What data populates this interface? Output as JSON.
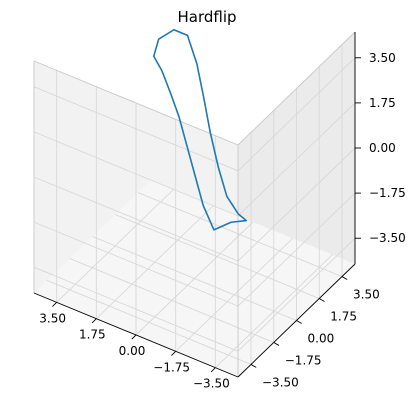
{
  "chart_data": {
    "type": "line",
    "projection": "3d",
    "title": "Hardflip",
    "xlabel": "",
    "ylabel": "",
    "zlabel": "",
    "x_ticks": [
      "−3.50",
      "−1.75",
      "0.00",
      "1.75",
      "3.50"
    ],
    "y_ticks": [
      "−3.50",
      "−1.75",
      "0.00",
      "1.75",
      "3.50"
    ],
    "z_ticks": [
      "−3.50",
      "−1.75",
      "0.00",
      "1.75",
      "3.50"
    ],
    "xlim": [
      -4.5,
      4.5
    ],
    "ylim": [
      -4.5,
      4.5
    ],
    "zlim": [
      -4.5,
      4.5
    ],
    "grid": true,
    "line_color": "#1f77b4",
    "series": [
      {
        "x": [
          -2.8,
          -2.3,
          -1.6,
          -0.9,
          -0.2,
          0.5,
          1.2,
          1.8,
          2.3,
          2.6,
          2.5,
          2.0,
          1.4,
          0.7,
          0.0,
          -0.7,
          -1.4,
          -2.0,
          -2.5,
          -2.8
        ],
        "y": [
          -0.9,
          -1.2,
          -1.3,
          -0.9,
          -0.3,
          0.3,
          0.9,
          1.3,
          1.5,
          1.4,
          1.6,
          1.9,
          1.9,
          1.4,
          0.7,
          0.0,
          -0.6,
          -1.0,
          -1.0,
          -0.9
        ],
        "z": [
          -0.8,
          -0.9,
          -1.4,
          -0.9,
          -0.3,
          0.3,
          0.9,
          1.4,
          2.0,
          2.5,
          3.1,
          3.5,
          3.5,
          2.9,
          2.2,
          1.4,
          0.6,
          -0.1,
          -0.6,
          -0.8
        ]
      }
    ]
  }
}
